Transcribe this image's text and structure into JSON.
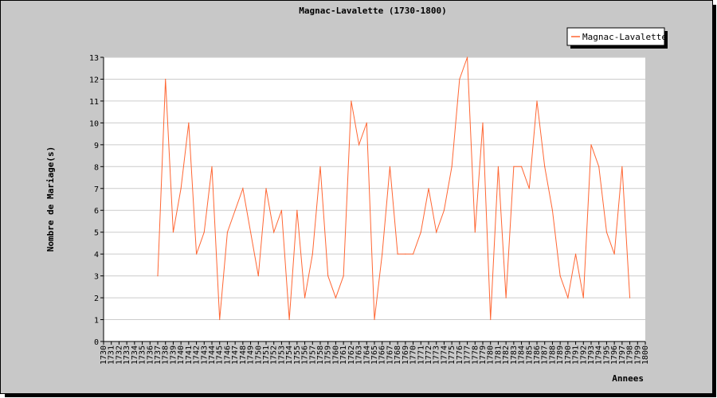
{
  "chart_data": {
    "type": "line",
    "title": "Magnac-Lavalette (1730-1800)",
    "xlabel": "Annees",
    "ylabel": "Nombre de Mariage(s)",
    "ylim": [
      0,
      13
    ],
    "xlim": [
      1730,
      1800
    ],
    "grid": true,
    "legend_position": "top-right",
    "line_color": "#ff6633",
    "y_ticks": [
      0,
      1,
      2,
      3,
      4,
      5,
      6,
      7,
      8,
      9,
      10,
      11,
      12,
      13
    ],
    "x_ticks": [
      1730,
      1731,
      1732,
      1733,
      1734,
      1735,
      1736,
      1737,
      1738,
      1739,
      1740,
      1741,
      1742,
      1743,
      1744,
      1745,
      1746,
      1747,
      1748,
      1749,
      1750,
      1751,
      1752,
      1753,
      1754,
      1755,
      1756,
      1757,
      1758,
      1759,
      1760,
      1761,
      1762,
      1763,
      1764,
      1765,
      1766,
      1767,
      1768,
      1769,
      1770,
      1771,
      1772,
      1773,
      1774,
      1775,
      1776,
      1777,
      1778,
      1779,
      1780,
      1781,
      1782,
      1783,
      1784,
      1785,
      1786,
      1787,
      1788,
      1789,
      1790,
      1791,
      1792,
      1793,
      1794,
      1795,
      1796,
      1797,
      1798,
      1799,
      1800
    ],
    "series": [
      {
        "name": "Magnac-Lavalette",
        "x": [
          1737,
          1738,
          1739,
          1740,
          1741,
          1742,
          1743,
          1744,
          1745,
          1746,
          1747,
          1748,
          1749,
          1750,
          1751,
          1752,
          1753,
          1754,
          1755,
          1756,
          1757,
          1758,
          1759,
          1760,
          1761,
          1762,
          1763,
          1764,
          1765,
          1766,
          1767,
          1768,
          1769,
          1770,
          1771,
          1772,
          1773,
          1774,
          1775,
          1776,
          1777,
          1778,
          1779,
          1780,
          1781,
          1782,
          1783,
          1784,
          1785,
          1786,
          1787,
          1788,
          1789,
          1790,
          1791,
          1792,
          1793,
          1794,
          1795,
          1796,
          1797,
          1798
        ],
        "values": [
          3,
          12,
          5,
          7,
          10,
          4,
          5,
          8,
          1,
          5,
          6,
          7,
          5,
          3,
          7,
          5,
          6,
          1,
          6,
          2,
          4,
          8,
          3,
          2,
          3,
          11,
          9,
          10,
          1,
          4,
          8,
          4,
          4,
          4,
          5,
          7,
          5,
          6,
          8,
          12,
          13,
          5,
          10,
          1,
          8,
          2,
          8,
          8,
          7,
          11,
          8,
          6,
          3,
          2,
          4,
          2,
          9,
          8,
          5,
          4,
          8,
          2
        ]
      }
    ]
  }
}
